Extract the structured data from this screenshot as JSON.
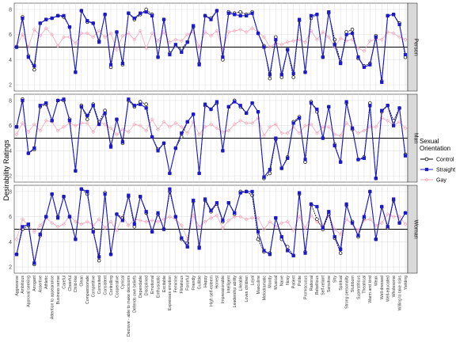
{
  "chart_data": {
    "type": "line",
    "ylabel": "Desirability Ratings",
    "xlabel": "",
    "ylim": [
      1.5,
      8.5
    ],
    "yticks": [
      2,
      4,
      6,
      8
    ],
    "reference_line": 5,
    "grid": true,
    "legend": {
      "title": "Sexual Orientation",
      "position": "right",
      "entries": [
        {
          "name": "Control",
          "color": "#000000",
          "marker": "open-circle"
        },
        {
          "name": "Straight",
          "color": "#1a1acc",
          "marker": "filled-square"
        },
        {
          "name": "Gay",
          "color": "#f4a6b8",
          "marker": "open-diamond"
        }
      ]
    },
    "categories": [
      "Aggressive",
      "Ambitious",
      "Approval seeking",
      "Arrogant",
      "Assertive",
      "Athletic",
      "Attention to appearance",
      "Business sense",
      "Careful",
      "Cheerful",
      "Child-like",
      "Clean",
      "Compassionate",
      "Competitive",
      "Conceited",
      "Consistent",
      "Controlling",
      "Cooperative",
      "Cynical",
      "Decisive - able to make decisions",
      "Defends own beliefs",
      "Dependable",
      "Disciplined",
      "Emotional",
      "Enthusiastic",
      "Excitable",
      "Expresses emotion",
      "Feminine",
      "Flirtatious",
      "Forceful",
      "Friendly",
      "Gullible",
      "Happy",
      "High self-esteem",
      "Honest",
      "Impressionable",
      "Intelligent",
      "Leadership ability",
      "Likeable",
      "Loves children",
      "Loyal",
      "Masculine",
      "Melodramatic",
      "Moody",
      "Musical",
      "Naive",
      "Nosy",
      "Patient",
      "Polite",
      "Promiscuous",
      "Rational",
      "Rebellious",
      "Self-reliant",
      "Sensitive",
      "Shy",
      "Spiritual",
      "Strong personality",
      "Stubborn",
      "Superstitious",
      "Theatrical",
      "Warm and kind",
      "Weak",
      "Well-dressed",
      "Well-educated",
      "Wholesome",
      "Willing to take risks",
      "Yielding"
    ],
    "tick_labels": [
      "Aggressive",
      "Ambitious",
      "Approval seeking",
      "Arrogant",
      "Assertive",
      "Athletic",
      "Attention to appearance",
      "Business sense",
      "Careful",
      "Cheerful",
      "Child-like",
      "Clean",
      "Compassionate",
      "Competitive",
      "Conceited",
      "Consistent",
      "Controlling",
      "Cooperative",
      "Cynical",
      "Decisive - able to make decisions",
      "Defends own beliefs",
      "Dependable",
      "Disciplined",
      "Emotional",
      "Enthusiastic",
      "Excitable",
      "Expresses emotion",
      "Feminine",
      "Flirtatious",
      "Forceful",
      "Friendly",
      "Gullible",
      "Happy",
      "High self-esteem",
      "Honest",
      "Impressionable",
      "Intelligent",
      "Leadership ability",
      "Likeable",
      "Loves children",
      "Loyal",
      "Masculine",
      "Melodramatic",
      "Moody",
      "Musical",
      "Naive",
      "Nosy",
      "Patient",
      "Polite",
      "Promiscuous",
      "Rational",
      "Rebellious",
      "Self-reliant",
      "Sensitive",
      "Shy",
      "Spiritual",
      "Strong personality",
      "Stubborn",
      "Superstitious",
      "Theatrical",
      "Warm and kind",
      "Weak",
      "Well-dressed",
      "Well-educated",
      "Wholesome",
      "Willing to take risks",
      "Yielding"
    ],
    "panels": [
      {
        "label": "Person",
        "series": [
          {
            "name": "Control",
            "values": [
              5.0,
              7.4,
              4.3,
              3.2,
              6.9,
              7.2,
              7.3,
              7.5,
              7.4,
              6.6,
              3.0,
              7.9,
              7.0,
              6.9,
              5.5,
              7.6,
              3.4,
              6.2,
              3.6,
              7.7,
              7.2,
              7.6,
              8.0,
              7.6,
              4.2,
              7.2,
              4.5,
              5.1,
              4.9,
              5.4,
              6.6,
              3.7,
              7.5,
              7.3,
              7.9,
              4.0,
              7.8,
              7.7,
              7.8,
              7.6,
              7.8,
              6.1,
              5.1,
              2.5,
              5.8,
              2.6,
              4.8,
              2.6,
              7.1,
              3.0,
              7.3,
              7.6,
              4.2,
              7.7,
              5.6,
              3.8,
              6.2,
              6.4,
              4.1,
              3.5,
              3.7,
              5.9,
              2.3,
              7.5,
              7.6,
              6.9,
              4.2
            ]
          },
          {
            "name": "Straight",
            "values": [
              5.0,
              7.3,
              4.2,
              3.5,
              6.9,
              7.2,
              7.3,
              7.5,
              7.5,
              6.6,
              3.0,
              7.9,
              7.1,
              6.9,
              5.4,
              7.6,
              3.6,
              6.2,
              3.7,
              7.7,
              7.3,
              7.7,
              7.8,
              7.5,
              4.2,
              7.2,
              4.4,
              5.2,
              4.6,
              5.4,
              6.7,
              3.6,
              7.5,
              7.2,
              7.9,
              4.2,
              7.7,
              7.6,
              7.5,
              7.5,
              7.7,
              6.1,
              5.0,
              2.8,
              5.6,
              2.8,
              4.8,
              2.9,
              7.2,
              3.0,
              7.5,
              7.6,
              4.2,
              7.8,
              5.2,
              3.7,
              6.0,
              6.1,
              4.2,
              3.4,
              3.6,
              5.8,
              2.2,
              7.5,
              7.6,
              6.8,
              4.4
            ]
          },
          {
            "name": "Gay",
            "values": [
              5.1,
              6.0,
              5.0,
              6.4,
              5.9,
              6.5,
              6.0,
              5.1,
              5.8,
              5.8,
              5.3,
              6.1,
              6.1,
              5.8,
              6.3,
              5.8,
              6.1,
              4.8,
              5.9,
              6.1,
              5.6,
              6.3,
              4.9,
              6.1,
              5.5,
              6.2,
              5.4,
              5.6,
              5.5,
              6.0,
              6.2,
              5.0,
              6.2,
              5.9,
              6.3,
              4.8,
              6.2,
              6.3,
              6.4,
              6.2,
              6.5,
              6.2,
              5.8,
              5.0,
              5.3,
              5.2,
              5.4,
              5.5,
              5.6,
              5.4,
              6.3,
              5.6,
              6.2,
              5.8,
              5.0,
              5.7,
              5.5,
              5.6,
              4.9,
              4.7,
              5.5,
              5.6,
              5.6,
              6.2,
              6.1,
              5.8,
              5.6
            ]
          }
        ]
      },
      {
        "label": "Man",
        "series": [
          {
            "name": "Control",
            "values": [
              5.9,
              8.1,
              3.8,
              4.1,
              7.5,
              7.7,
              6.4,
              8.0,
              8.0,
              6.5,
              2.4,
              7.6,
              6.5,
              7.7,
              6.3,
              7.2,
              4.4,
              6.5,
              4.6,
              8.0,
              7.5,
              7.9,
              7.7,
              5.1,
              4.1,
              4.6,
              2.2,
              4.2,
              5.1,
              6.3,
              6.9,
              2.2,
              7.6,
              7.3,
              7.8,
              4.0,
              7.5,
              8.0,
              7.5,
              7.0,
              7.8,
              7.1,
              1.8,
              2.2,
              4.9,
              2.6,
              3.5,
              6.3,
              6.7,
              3.1,
              7.9,
              7.1,
              5.0,
              7.5,
              4.5,
              3.1,
              7.8,
              5.7,
              3.3,
              3.5,
              7.8,
              1.8,
              7.1,
              7.6,
              6.4,
              7.4,
              3.7
            ]
          },
          {
            "name": "Straight",
            "values": [
              5.9,
              8.0,
              3.8,
              4.2,
              7.6,
              7.8,
              6.4,
              8.0,
              8.1,
              6.4,
              2.4,
              7.5,
              6.8,
              7.6,
              6.1,
              7.0,
              4.3,
              6.5,
              4.7,
              8.1,
              7.6,
              7.7,
              7.4,
              5.1,
              4.0,
              4.6,
              2.2,
              4.2,
              5.4,
              6.3,
              6.9,
              2.2,
              7.7,
              7.3,
              7.9,
              4.0,
              7.5,
              7.9,
              7.6,
              7.0,
              7.8,
              7.1,
              1.9,
              2.5,
              5.0,
              2.6,
              3.4,
              6.2,
              6.6,
              3.3,
              7.8,
              7.3,
              5.0,
              7.5,
              4.4,
              3.1,
              7.9,
              5.8,
              3.3,
              3.4,
              7.6,
              1.8,
              7.2,
              7.6,
              6.0,
              7.4,
              3.6
            ]
          },
          {
            "name": "Gay",
            "values": [
              5.3,
              6.2,
              5.5,
              6.1,
              5.6,
              6.4,
              6.3,
              5.6,
              5.9,
              6.2,
              6.0,
              6.2,
              6.2,
              5.5,
              6.3,
              6.1,
              5.8,
              5.3,
              5.7,
              5.5,
              6.1,
              6.0,
              5.6,
              6.5,
              5.7,
              6.3,
              5.9,
              6.2,
              5.9,
              5.4,
              6.3,
              5.3,
              5.9,
              6.1,
              5.8,
              5.5,
              5.6,
              6.1,
              6.4,
              6.2,
              6.2,
              6.6,
              5.2,
              5.9,
              6.1,
              5.4,
              5.4,
              5.9,
              5.4,
              6.0,
              6.1,
              5.4,
              5.9,
              5.9,
              5.3,
              5.2,
              6.2,
              5.8,
              5.4,
              5.6,
              5.9,
              5.9,
              6.6,
              6.4,
              6.0,
              6.3,
              5.8
            ]
          }
        ]
      },
      {
        "label": "Woman",
        "series": [
          {
            "name": "Control",
            "values": [
              3.0,
              5.0,
              5.3,
              2.2,
              4.5,
              6.0,
              7.8,
              6.0,
              7.6,
              6.0,
              4.2,
              8.2,
              7.8,
              5.0,
              2.5,
              7.9,
              3.0,
              6.2,
              5.9,
              7.6,
              5.2,
              7.6,
              6.3,
              4.8,
              6.2,
              5.0,
              8.0,
              6.0,
              4.2,
              3.9,
              7.2,
              3.6,
              7.3,
              6.4,
              7.0,
              5.6,
              7.1,
              6.2,
              8.0,
              8.0,
              7.7,
              4.2,
              3.2,
              3.1,
              5.9,
              4.2,
              3.6,
              2.9,
              7.8,
              3.2,
              7.0,
              5.8,
              5.0,
              6.2,
              4.3,
              3.1,
              6.9,
              5.6,
              4.4,
              5.9,
              8.0,
              4.2,
              6.8,
              5.1,
              7.3,
              5.5,
              6.3
            ]
          },
          {
            "name": "Straight",
            "values": [
              3.0,
              5.2,
              5.4,
              2.3,
              4.6,
              6.0,
              7.8,
              5.9,
              7.6,
              6.0,
              4.2,
              8.2,
              8.0,
              4.8,
              2.8,
              7.8,
              3.0,
              6.2,
              5.7,
              7.7,
              5.4,
              7.6,
              6.4,
              4.8,
              6.3,
              5.0,
              8.2,
              6.0,
              4.3,
              3.6,
              7.3,
              3.5,
              7.4,
              6.5,
              7.1,
              5.7,
              7.1,
              6.3,
              7.9,
              8.0,
              8.0,
              4.8,
              3.3,
              3.0,
              5.9,
              4.4,
              3.3,
              2.9,
              7.9,
              3.1,
              7.0,
              6.8,
              5.1,
              6.4,
              4.4,
              3.4,
              7.0,
              5.5,
              4.5,
              6.0,
              8.0,
              4.2,
              6.8,
              5.2,
              7.4,
              5.5,
              6.3
            ]
          },
          {
            "name": "Gay",
            "values": [
              4.2,
              5.8,
              5.3,
              4.8,
              5.3,
              5.9,
              5.5,
              5.2,
              5.4,
              6.1,
              5.6,
              5.4,
              5.6,
              5.3,
              5.8,
              5.1,
              5.6,
              4.9,
              6.0,
              5.3,
              5.8,
              5.7,
              5.6,
              5.7,
              5.6,
              5.8,
              6.0,
              5.8,
              5.3,
              4.2,
              6.1,
              5.2,
              5.6,
              5.9,
              6.1,
              5.1,
              5.7,
              6.0,
              6.0,
              5.8,
              5.9,
              5.9,
              5.0,
              5.6,
              5.2,
              5.5,
              5.6,
              4.9,
              6.0,
              5.1,
              6.1,
              5.6,
              5.2,
              6.1,
              5.0,
              4.6,
              5.8,
              5.4,
              4.9,
              5.7,
              5.8,
              5.3,
              5.5,
              6.2,
              6.0,
              6.0,
              5.4
            ]
          }
        ]
      }
    ]
  }
}
